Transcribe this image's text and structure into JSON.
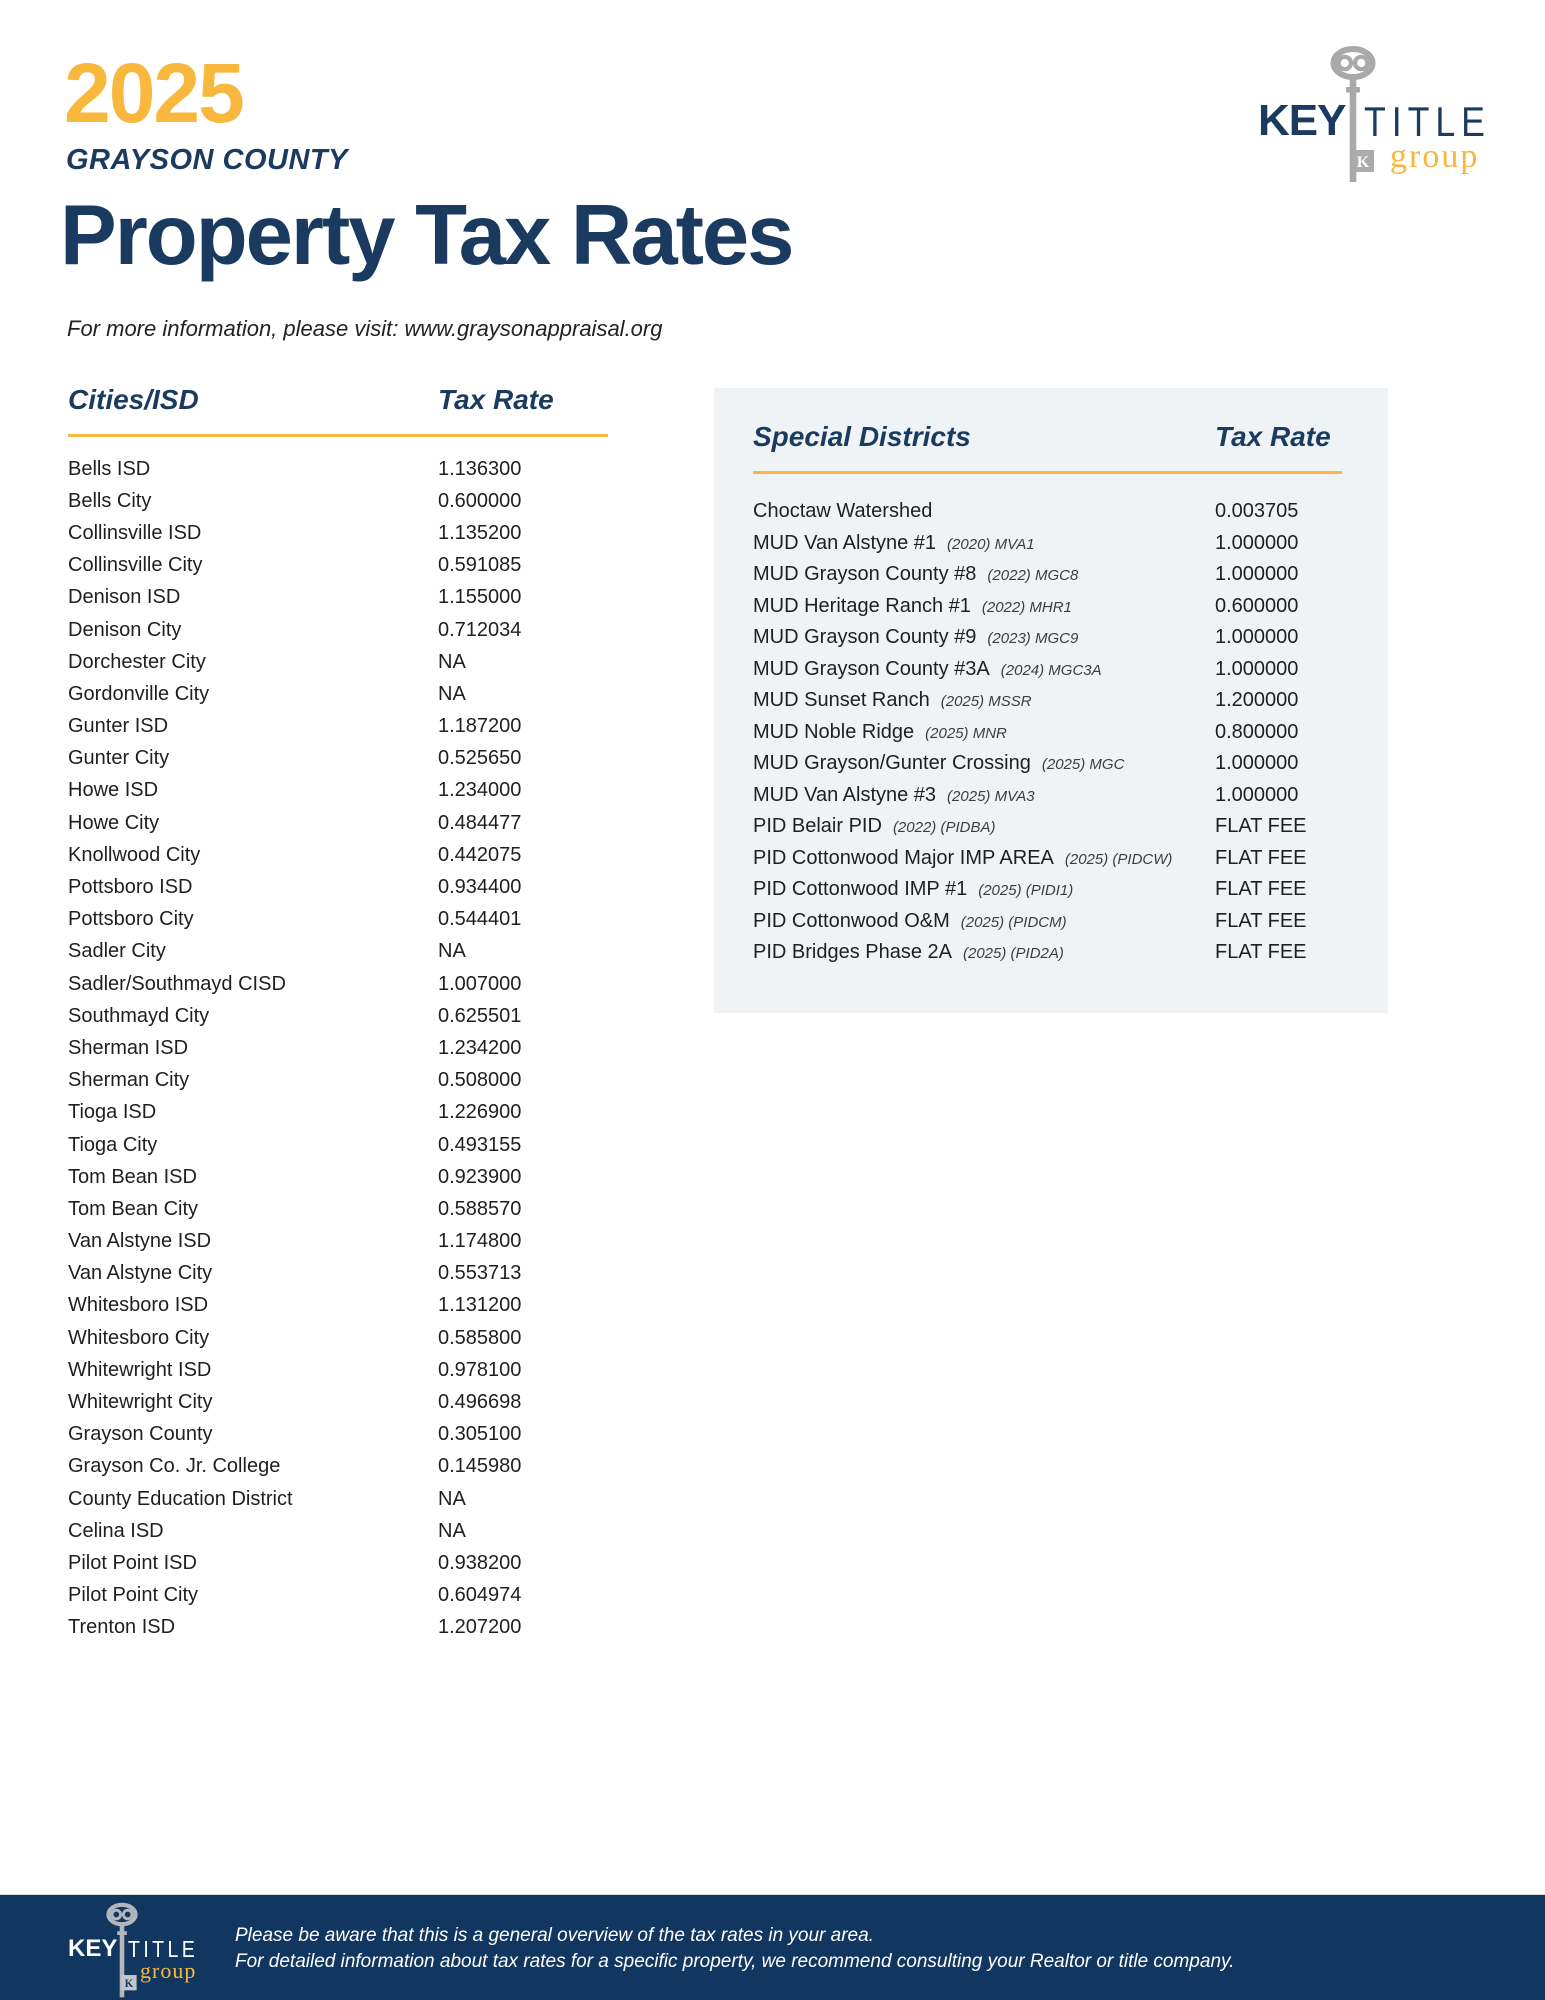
{
  "header": {
    "year": "2025",
    "county": "GRAYSON COUNTY",
    "title": "Property Tax Rates",
    "subtitle": "For more information, please visit: www.graysonappraisal.org"
  },
  "logo": {
    "key_word": "KEY",
    "title_word": "TITLE",
    "group_word": "group",
    "monogram": "K"
  },
  "colors": {
    "gold": "#F7B83D",
    "navy": "#1A3A5F",
    "footer_navy": "#11365F",
    "panel_bg": "#F0F3F6",
    "body_text": "#1F1F1F",
    "key_gray": "#A9A9A9"
  },
  "cities_table": {
    "header": {
      "col1": "Cities/ISD",
      "col2": "Tax Rate"
    },
    "rows": [
      {
        "name": "Bells ISD",
        "rate": "1.136300"
      },
      {
        "name": "Bells City",
        "rate": "0.600000"
      },
      {
        "name": "Collinsville ISD",
        "rate": "1.135200"
      },
      {
        "name": "Collinsville City",
        "rate": "0.591085"
      },
      {
        "name": "Denison ISD",
        "rate": "1.155000"
      },
      {
        "name": "Denison City",
        "rate": "0.712034"
      },
      {
        "name": "Dorchester City",
        "rate": "NA"
      },
      {
        "name": "Gordonville City",
        "rate": "NA"
      },
      {
        "name": "Gunter ISD",
        "rate": "1.187200"
      },
      {
        "name": "Gunter City",
        "rate": "0.525650"
      },
      {
        "name": "Howe ISD",
        "rate": "1.234000"
      },
      {
        "name": "Howe City",
        "rate": "0.484477"
      },
      {
        "name": "Knollwood City",
        "rate": "0.442075"
      },
      {
        "name": "Pottsboro ISD",
        "rate": "0.934400"
      },
      {
        "name": "Pottsboro City",
        "rate": "0.544401"
      },
      {
        "name": "Sadler City",
        "rate": "NA"
      },
      {
        "name": "Sadler/Southmayd CISD",
        "rate": "1.007000"
      },
      {
        "name": "Southmayd City",
        "rate": "0.625501"
      },
      {
        "name": "Sherman ISD",
        "rate": "1.234200"
      },
      {
        "name": "Sherman City",
        "rate": "0.508000"
      },
      {
        "name": "Tioga ISD",
        "rate": "1.226900"
      },
      {
        "name": "Tioga City",
        "rate": "0.493155"
      },
      {
        "name": "Tom Bean ISD",
        "rate": "0.923900"
      },
      {
        "name": "Tom Bean City",
        "rate": "0.588570"
      },
      {
        "name": "Van Alstyne ISD",
        "rate": "1.174800"
      },
      {
        "name": "Van Alstyne City",
        "rate": "0.553713"
      },
      {
        "name": "Whitesboro ISD",
        "rate": "1.131200"
      },
      {
        "name": "Whitesboro City",
        "rate": "0.585800"
      },
      {
        "name": "Whitewright ISD",
        "rate": "0.978100"
      },
      {
        "name": "Whitewright City",
        "rate": "0.496698"
      },
      {
        "name": "Grayson County",
        "rate": "0.305100"
      },
      {
        "name": "Grayson Co. Jr. College",
        "rate": "0.145980"
      },
      {
        "name": "County Education District",
        "rate": "NA"
      },
      {
        "name": "Celina ISD",
        "rate": "NA"
      },
      {
        "name": "Pilot Point ISD",
        "rate": "0.938200"
      },
      {
        "name": "Pilot Point City",
        "rate": "0.604974"
      },
      {
        "name": "Trenton ISD",
        "rate": "1.207200"
      }
    ]
  },
  "districts_table": {
    "header": {
      "col1": "Special Districts",
      "col2": "Tax Rate"
    },
    "rows": [
      {
        "name": "Choctaw Watershed",
        "note": "",
        "rate": "0.003705"
      },
      {
        "name": "MUD Van Alstyne #1",
        "note": "(2020) MVA1",
        "rate": "1.000000"
      },
      {
        "name": "MUD Grayson County #8",
        "note": "(2022) MGC8",
        "rate": "1.000000"
      },
      {
        "name": "MUD Heritage Ranch #1",
        "note": "(2022) MHR1",
        "rate": "0.600000"
      },
      {
        "name": "MUD Grayson County #9",
        "note": "(2023) MGC9",
        "rate": "1.000000"
      },
      {
        "name": "MUD Grayson County #3A",
        "note": "(2024) MGC3A",
        "rate": "1.000000"
      },
      {
        "name": "MUD Sunset Ranch",
        "note": "(2025) MSSR",
        "rate": "1.200000"
      },
      {
        "name": "MUD Noble Ridge",
        "note": "(2025) MNR",
        "rate": "0.800000"
      },
      {
        "name": "MUD Grayson/Gunter Crossing",
        "note": "(2025) MGC",
        "rate": "1.000000"
      },
      {
        "name": "MUD Van Alstyne #3",
        "note": "(2025) MVA3",
        "rate": "1.000000"
      },
      {
        "name": "PID Belair PID",
        "note": "(2022) (PIDBA)",
        "rate": "FLAT FEE"
      },
      {
        "name": "PID Cottonwood Major IMP AREA",
        "note": "(2025) (PIDCW)",
        "rate": "FLAT FEE"
      },
      {
        "name": "PID Cottonwood IMP #1",
        "note": "(2025) (PIDI1)",
        "rate": "FLAT FEE"
      },
      {
        "name": "PID Cottonwood O&M",
        "note": "(2025) (PIDCM)",
        "rate": "FLAT FEE"
      },
      {
        "name": "PID Bridges Phase 2A",
        "note": "(2025) (PID2A)",
        "rate": "FLAT FEE"
      }
    ]
  },
  "footer": {
    "line1": "Please be aware that this is a general overview of the tax rates in your area.",
    "line2": "For detailed information about tax rates for a specific property, we recommend consulting your Realtor or title company."
  }
}
